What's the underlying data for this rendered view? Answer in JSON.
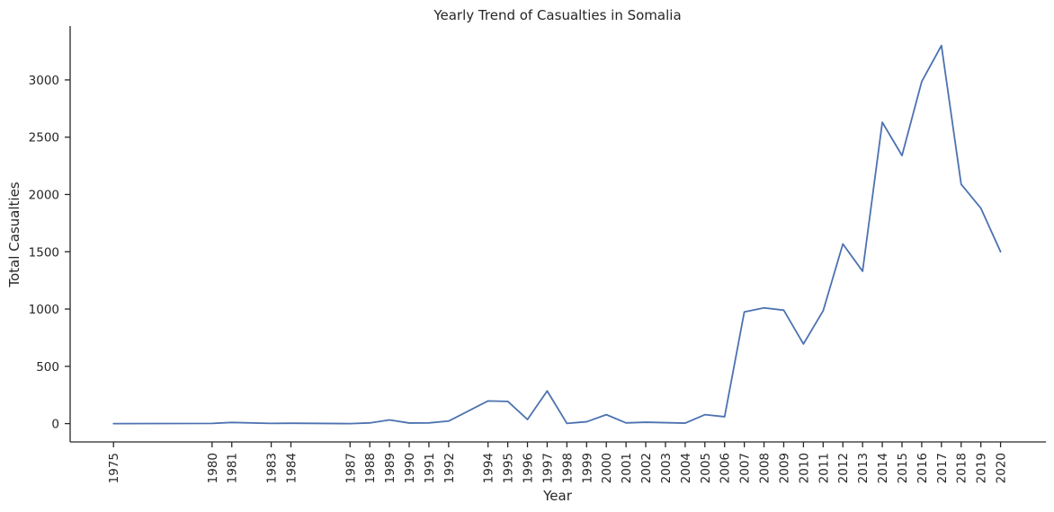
{
  "chart_data": {
    "type": "line",
    "title": "Yearly Trend of Casualties in Somalia",
    "xlabel": "Year",
    "ylabel": "Total Casualties",
    "x": [
      1975,
      1980,
      1981,
      1983,
      1984,
      1987,
      1988,
      1989,
      1990,
      1991,
      1992,
      1994,
      1995,
      1996,
      1997,
      1998,
      1999,
      2000,
      2001,
      2002,
      2003,
      2004,
      2005,
      2006,
      2007,
      2008,
      2009,
      2010,
      2011,
      2012,
      2013,
      2014,
      2015,
      2016,
      2017,
      2018,
      2019,
      2020
    ],
    "series": [
      {
        "values": [
          0,
          2,
          10,
          2,
          3,
          0,
          6,
          32,
          5,
          6,
          22,
          198,
          194,
          36,
          285,
          2,
          16,
          78,
          6,
          12,
          8,
          4,
          78,
          60,
          975,
          1010,
          990,
          695,
          985,
          1568,
          1330,
          2630,
          2340,
          2985,
          3300,
          2090,
          1880,
          1500
        ],
        "color": "#4c72b0"
      }
    ],
    "x_tick_labels": [
      "1975",
      "1980",
      "1981",
      "1983",
      "1984",
      "1987",
      "1988",
      "1989",
      "1990",
      "1991",
      "1992",
      "1994",
      "1995",
      "1996",
      "1997",
      "1998",
      "1999",
      "2000",
      "2001",
      "2002",
      "2003",
      "2004",
      "2005",
      "2006",
      "2007",
      "2008",
      "2009",
      "2010",
      "2011",
      "2012",
      "2013",
      "2014",
      "2015",
      "2016",
      "2017",
      "2018",
      "2019",
      "2020"
    ],
    "y_ticks": [
      0,
      500,
      1000,
      1500,
      2000,
      2500,
      3000
    ],
    "y_tick_labels": [
      "0",
      "500",
      "1000",
      "1500",
      "2000",
      "2500",
      "3000"
    ],
    "xlim": [
      1972.8,
      2022.3
    ],
    "ylim": [
      -160,
      3470
    ],
    "grid": false,
    "legend": "none"
  }
}
